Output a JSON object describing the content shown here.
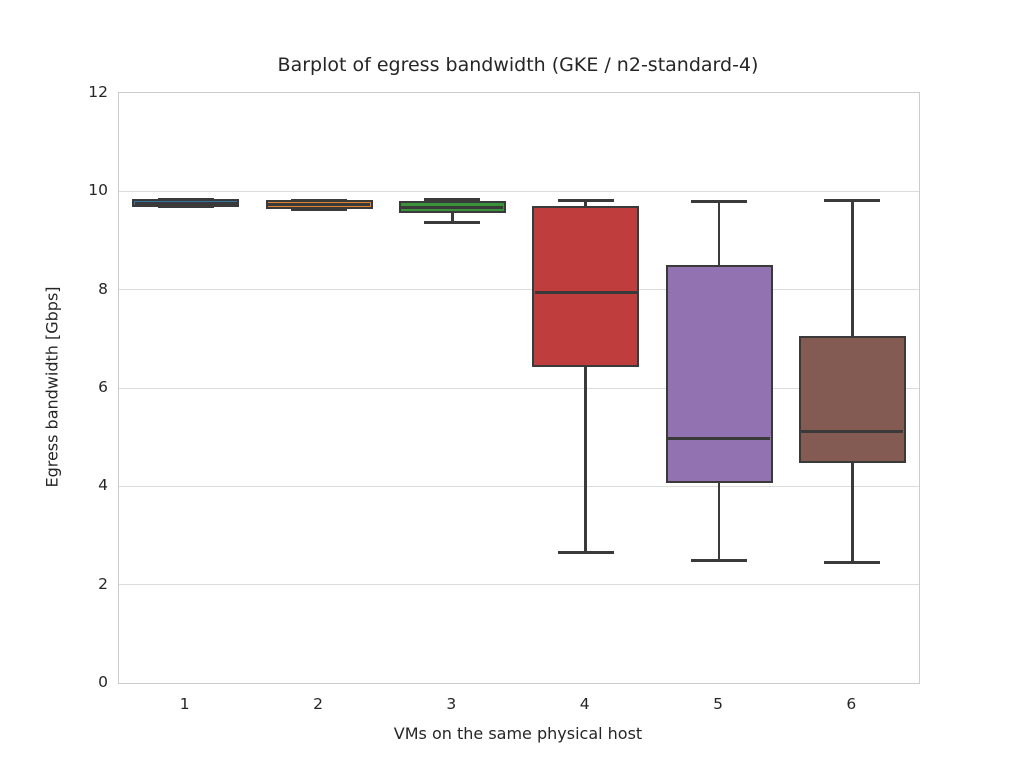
{
  "chart_data": {
    "type": "boxplot",
    "title": "Barplot of egress bandwidth (GKE / n2-standard-4)",
    "xlabel": "VMs on the same physical host",
    "ylabel": "Egress bandwidth [Gbps]",
    "ylim": [
      0,
      12
    ],
    "yticks": [
      0,
      2,
      4,
      6,
      8,
      10,
      12
    ],
    "gridline_values": [
      2,
      4,
      6,
      8,
      10
    ],
    "grid_on": true,
    "categories": [
      "1",
      "2",
      "3",
      "4",
      "5",
      "6"
    ],
    "series": [
      {
        "category": "1",
        "whisker_low": 9.7,
        "q1": 9.73,
        "median": 9.76,
        "q3": 9.8,
        "whisker_high": 9.83,
        "color": "#3274a1"
      },
      {
        "category": "2",
        "whisker_low": 9.63,
        "q1": 9.7,
        "median": 9.74,
        "q3": 9.78,
        "whisker_high": 9.81,
        "color": "#e1812c"
      },
      {
        "category": "3",
        "whisker_low": 9.37,
        "q1": 9.62,
        "median": 9.68,
        "q3": 9.76,
        "whisker_high": 9.83,
        "color": "#3a923a"
      },
      {
        "category": "4",
        "whisker_low": 2.65,
        "q1": 6.48,
        "median": 7.95,
        "q3": 9.66,
        "whisker_high": 9.82,
        "color": "#c03d3e"
      },
      {
        "category": "5",
        "whisker_low": 2.5,
        "q1": 4.12,
        "median": 4.97,
        "q3": 8.46,
        "whisker_high": 9.8,
        "color": "#9372b2"
      },
      {
        "category": "6",
        "whisker_low": 2.45,
        "q1": 4.52,
        "median": 5.12,
        "q3": 7.0,
        "whisker_high": 9.81,
        "color": "#845b53"
      }
    ],
    "style": {
      "edge_color": "#3a3a3a",
      "grid_color": "#dcdcdc",
      "spine_color": "#cccccc",
      "background_color": "#ffffff",
      "text_color": "#262626"
    }
  }
}
